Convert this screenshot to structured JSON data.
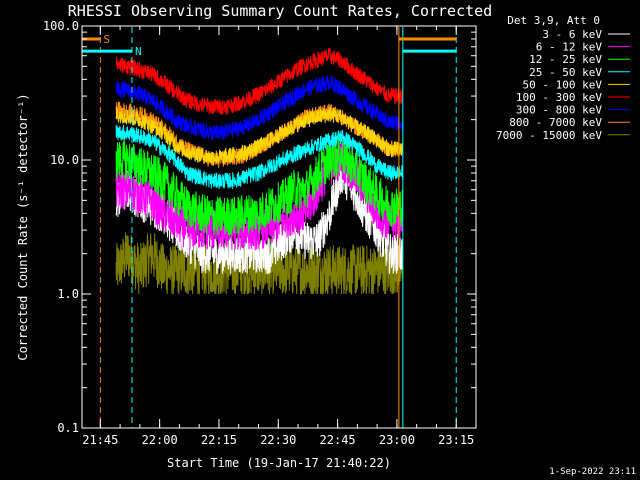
{
  "chart_data": {
    "type": "line",
    "title": "RHESSI Observing Summary Count Rates, Corrected",
    "xlabel": "Start Time (19-Jan-17 21:40:22)",
    "ylabel": "Corrected Count Rate (s⁻¹ detector⁻¹)",
    "yscale": "log",
    "ylim": [
      0.1,
      100.0
    ],
    "xlim": [
      "21:40:22",
      "23:20:00"
    ],
    "x_ticks": [
      "21:45",
      "22:00",
      "22:15",
      "22:30",
      "22:45",
      "23:00",
      "23:15"
    ],
    "y_ticks": [
      "0.1",
      "1.0",
      "10.0",
      "100.0"
    ],
    "legend_title": "Det 3,9, Att 0",
    "legend_position": "top-right",
    "data_start": "21:49:00",
    "data_end": "23:01:30",
    "x_samples": [
      "21:49",
      "21:52",
      "21:55",
      "21:58",
      "22:01",
      "22:04",
      "22:07",
      "22:10",
      "22:13",
      "22:16",
      "22:19",
      "22:22",
      "22:25",
      "22:28",
      "22:31",
      "22:34",
      "22:37",
      "22:40",
      "22:43",
      "22:46",
      "22:49",
      "22:52",
      "22:55",
      "22:58",
      "23:01"
    ],
    "series": [
      {
        "name": "3 - 6 keV",
        "color": "#ffffff",
        "values": [
          5,
          6,
          5,
          4.5,
          4,
          3,
          2.5,
          2,
          2,
          2,
          2,
          2,
          2,
          2,
          2.5,
          3,
          2.5,
          2.5,
          4,
          8,
          6,
          4,
          3,
          2,
          2
        ]
      },
      {
        "name": "6 - 12 keV",
        "color": "#ff00ff",
        "values": [
          6,
          6,
          5.5,
          5,
          4,
          3.5,
          3,
          3,
          3,
          3,
          3,
          3,
          3,
          3.2,
          3.5,
          4,
          4,
          6,
          9,
          10,
          8,
          6,
          4,
          3.5,
          3.5
        ]
      },
      {
        "name": "12 - 25 keV",
        "color": "#00ff00",
        "values": [
          10,
          10,
          9,
          8,
          7,
          5.5,
          4.5,
          4,
          3.8,
          3.8,
          3.8,
          4,
          4,
          4.5,
          5,
          6,
          6,
          8,
          10,
          11,
          9,
          7,
          5.5,
          4.5,
          4.5
        ]
      },
      {
        "name": "25 - 50 keV",
        "color": "#00ffff",
        "values": [
          16,
          16,
          15,
          14,
          12,
          10,
          8,
          7.5,
          7,
          7,
          7,
          7.5,
          8,
          9,
          10,
          11,
          12,
          13,
          14,
          15,
          13,
          11,
          9,
          8,
          8
        ]
      },
      {
        "name": "50 - 100 keV",
        "color": "#ffd700",
        "values": [
          22,
          21,
          20,
          18,
          16,
          13,
          11.5,
          11,
          10.5,
          10.5,
          11,
          11.5,
          12.5,
          14,
          16,
          18,
          20,
          21,
          22,
          21,
          18,
          16,
          14,
          12,
          12
        ]
      },
      {
        "name": "100 - 300 keV",
        "color": "#ff0000",
        "values": [
          52,
          50,
          47,
          44,
          38,
          32,
          28,
          26,
          25,
          25,
          26,
          28,
          31,
          35,
          40,
          46,
          52,
          56,
          60,
          55,
          46,
          40,
          34,
          30,
          30
        ]
      },
      {
        "name": "300 - 800 keV",
        "color": "#0000ff",
        "values": [
          34,
          33,
          31,
          28,
          24,
          20,
          18,
          17,
          16,
          16,
          17,
          18,
          20,
          23,
          26,
          30,
          34,
          36,
          38,
          34,
          29,
          25,
          22,
          19,
          19
        ]
      },
      {
        "name": "800 - 7000 keV",
        "color": "#ff8c00",
        "values": [
          24,
          23,
          22,
          20,
          17,
          14,
          12,
          11,
          10,
          10,
          10.5,
          11,
          12.5,
          14,
          16,
          18,
          21,
          22,
          23,
          21,
          18,
          16,
          14,
          12,
          12
        ]
      },
      {
        "name": "7000 - 15000 keV",
        "color": "#808000",
        "values": [
          1.5,
          2,
          1.5,
          2,
          1.5,
          1.5,
          1.5,
          1.5,
          1.5,
          1.5,
          1.5,
          1.5,
          1.5,
          1.5,
          1.5,
          1.5,
          1.5,
          1.5,
          1.5,
          1.5,
          1.5,
          1.5,
          1.5,
          1.5,
          1.5
        ]
      }
    ],
    "flag_bars": [
      {
        "label": "S",
        "color": "#ff8c00",
        "start": "21:40:22",
        "end": "21:45:00",
        "level": "upper"
      },
      {
        "label": "N",
        "color": "#00ffff",
        "start": "21:40:22",
        "end": "21:53:00",
        "level": "lower"
      },
      {
        "label": "",
        "color": "#ff8c00",
        "start": "23:00:30",
        "end": "23:15:00",
        "level": "upper"
      },
      {
        "label": "",
        "color": "#00ffff",
        "start": "23:01:30",
        "end": "23:15:00",
        "level": "lower"
      }
    ],
    "markers": [
      {
        "color": "#00ffff",
        "style": "solid",
        "time": "21:40:22"
      },
      {
        "color": "#ff8c00",
        "style": "dashed",
        "time": "21:45:00"
      },
      {
        "color": "#00ffff",
        "style": "dashed",
        "time": "21:53:00"
      },
      {
        "color": "#ff8c00",
        "style": "solid",
        "time": "23:00:30"
      },
      {
        "color": "#00ffff",
        "style": "solid",
        "time": "23:01:30"
      },
      {
        "color": "#00ffff",
        "style": "dashed",
        "time": "23:15:00"
      }
    ],
    "footer": "1-Sep-2022 23:11"
  }
}
